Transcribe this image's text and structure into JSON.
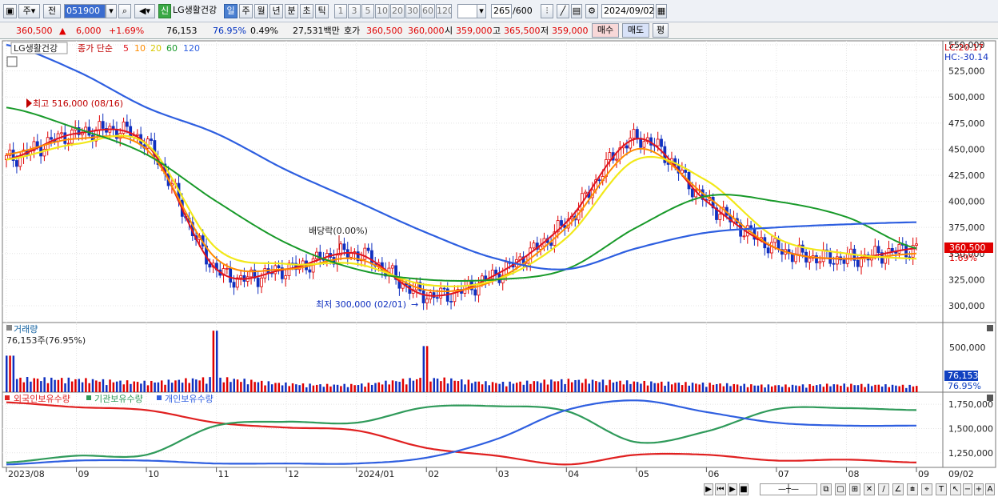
{
  "toolbar": {
    "type_label": "주",
    "prev_label": "전",
    "code": "051900",
    "badge": "신",
    "name": "LG생활건강",
    "periods": [
      "일",
      "주",
      "월",
      "년",
      "분",
      "초",
      "틱"
    ],
    "active_period": "일",
    "intervals": [
      "1",
      "3",
      "5",
      "10",
      "20",
      "30",
      "60",
      "120"
    ],
    "count": "265",
    "count_max": "/600",
    "date": "2024/09/02"
  },
  "quote": {
    "price": "360,500",
    "change": "6,000",
    "change_rate": "+1.69%",
    "volume": "76,153",
    "volume_ratio": "76.95%",
    "turnover": "0.49%",
    "amount": "27,531백만",
    "hoga_label": "호가",
    "ask": "360,500",
    "bid": "360,000",
    "open_label": "시",
    "open": "359,000",
    "high_label": "고",
    "high": "365,500",
    "low_label": "저",
    "low": "359,000",
    "buy_label": "매수",
    "sell_label": "매도",
    "eval_label": "평"
  },
  "price_panel": {
    "stock_label": "LG생활건강",
    "legend_prefix": "종가 단순",
    "ma_periods": [
      "5",
      "10",
      "20",
      "60",
      "120"
    ],
    "lc": "LC:20.17",
    "hc": "HC:-30.14",
    "max_note": "최고 516,000 (08/16)",
    "min_note": "최저 300,000 (02/01)",
    "dividend_note": "배당락(0.00%)",
    "current_price_tag": "360,500",
    "current_rate_tag": "1.69%"
  },
  "volume_panel": {
    "title": "거래량",
    "summary": "76,153주(76.95%)",
    "tag_value": "76,153",
    "tag_ratio": "76.95%",
    "tick_label": "500,000"
  },
  "holdings_panel": {
    "legend": [
      "외국인보유수량",
      "기관보유수량",
      "개인보유수량"
    ]
  },
  "xaxis": {
    "labels": [
      "2023/08",
      "09",
      "10",
      "11",
      "12",
      "2024/01",
      "02",
      "03",
      "04",
      "05",
      "06",
      "07",
      "08",
      "09"
    ],
    "right_label": "09/02"
  },
  "colors": {
    "up": "#e00000",
    "down": "#1030c0",
    "ma5": "#e0141e",
    "ma10": "#ff8c00",
    "ma20": "#f2e81a",
    "ma60": "#199a2a",
    "ma120": "#2e5fe0",
    "foreign": "#e02020",
    "institution": "#2f9a5a",
    "individual": "#2f5fe0"
  },
  "chart_data": [
    {
      "type": "line",
      "title": "LG생활건강",
      "x": [
        "2023/08",
        "2023/09",
        "2023/10",
        "2023/11",
        "2023/12",
        "2024/01",
        "2024/02",
        "2024/03",
        "2024/04",
        "2024/05",
        "2024/06",
        "2024/07",
        "2024/08",
        "2024/09"
      ],
      "ylim": [
        290000,
        560000
      ],
      "yticks": [
        300000,
        325000,
        350000,
        375000,
        400000,
        425000,
        450000,
        475000,
        500000,
        525000,
        550000
      ],
      "series": [
        {
          "name": "5",
          "values": [
            440000,
            465000,
            455000,
            335000,
            335000,
            350000,
            310000,
            330000,
            380000,
            460000,
            400000,
            355000,
            345000,
            355000
          ]
        },
        {
          "name": "10",
          "values": [
            445000,
            460000,
            450000,
            345000,
            335000,
            345000,
            315000,
            325000,
            375000,
            450000,
            405000,
            355000,
            345000,
            350000
          ]
        },
        {
          "name": "20",
          "values": [
            440000,
            455000,
            455000,
            355000,
            340000,
            340000,
            320000,
            325000,
            365000,
            440000,
            420000,
            365000,
            350000,
            345000
          ]
        },
        {
          "name": "60",
          "values": [
            490000,
            470000,
            445000,
            400000,
            360000,
            335000,
            325000,
            325000,
            335000,
            375000,
            405000,
            400000,
            385000,
            355000
          ]
        },
        {
          "name": "120",
          "values": [
            550000,
            525000,
            490000,
            465000,
            430000,
            400000,
            370000,
            345000,
            335000,
            355000,
            370000,
            375000,
            378000,
            380000
          ]
        }
      ]
    },
    {
      "type": "bar",
      "title": "거래량",
      "x": [
        "2023/08",
        "2023/09",
        "2023/10",
        "2023/11",
        "2023/12",
        "2024/01",
        "2024/02",
        "2024/03",
        "2024/04",
        "2024/05",
        "2024/06",
        "2024/07",
        "2024/08",
        "2024/09"
      ],
      "values": [
        380000,
        150000,
        120000,
        640000,
        100000,
        90000,
        480000,
        110000,
        140000,
        120000,
        100000,
        80000,
        90000,
        76153
      ],
      "ylim": [
        0,
        700000
      ]
    },
    {
      "type": "line",
      "x": [
        "2023/08",
        "2023/09",
        "2023/10",
        "2023/11",
        "2023/12",
        "2024/01",
        "2024/02",
        "2024/03",
        "2024/04",
        "2024/05",
        "2024/06",
        "2024/07",
        "2024/08",
        "2024/09"
      ],
      "ylim": [
        1100000,
        1850000
      ],
      "yticks": [
        1250000,
        1500000,
        1750000
      ],
      "series": [
        {
          "name": "외국인보유수량",
          "values": [
            1770000,
            1720000,
            1690000,
            1560000,
            1510000,
            1480000,
            1300000,
            1220000,
            1130000,
            1230000,
            1230000,
            1170000,
            1180000,
            1150000
          ]
        },
        {
          "name": "기관보유수량",
          "values": [
            1150000,
            1220000,
            1230000,
            1530000,
            1570000,
            1560000,
            1720000,
            1730000,
            1680000,
            1360000,
            1470000,
            1700000,
            1710000,
            1690000
          ]
        },
        {
          "name": "개인보유수량",
          "values": [
            1130000,
            1170000,
            1170000,
            1140000,
            1140000,
            1140000,
            1200000,
            1390000,
            1690000,
            1790000,
            1670000,
            1560000,
            1530000,
            1530000
          ]
        }
      ]
    }
  ]
}
